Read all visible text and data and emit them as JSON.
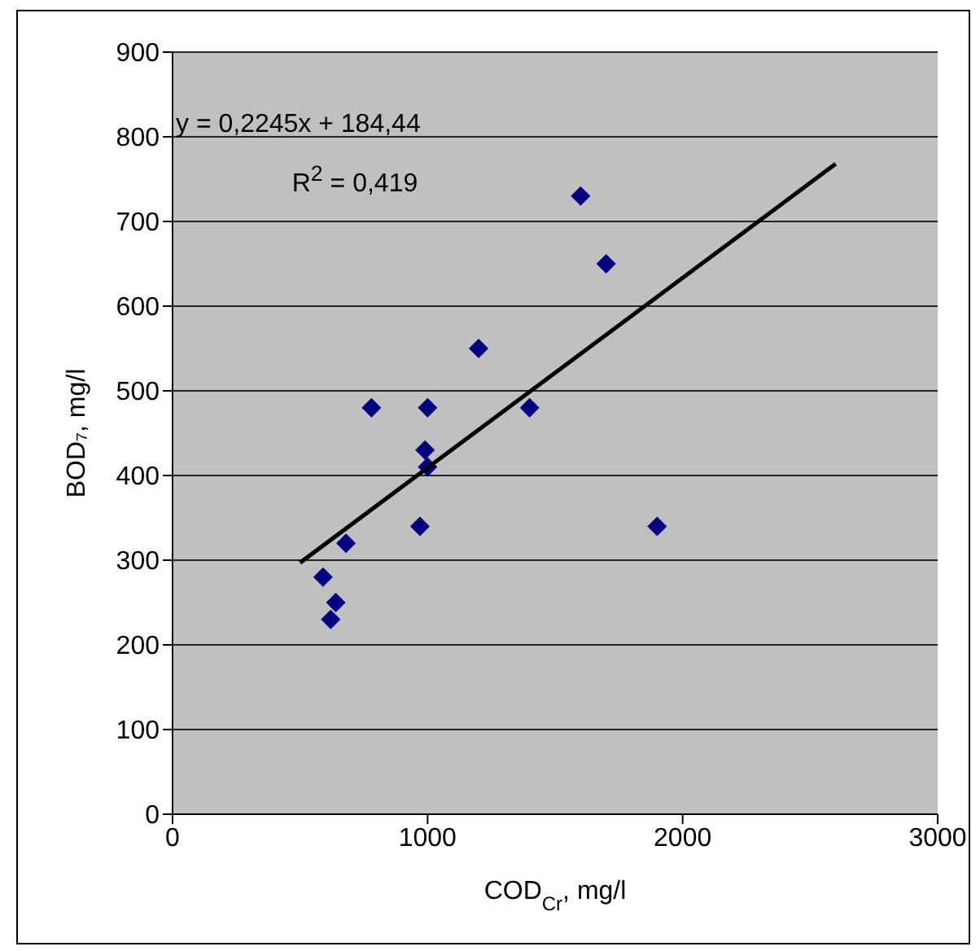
{
  "chart_data": {
    "type": "scatter",
    "xlabel": "COD$_{Cr}$, mg/l",
    "ylabel": "BOD₇, mg/l",
    "xlim": [
      0,
      3000
    ],
    "xticks": [
      0,
      1000,
      2000,
      3000
    ],
    "ylim": [
      0,
      900
    ],
    "yticks": [
      0,
      100,
      200,
      300,
      400,
      500,
      600,
      700,
      800,
      900
    ],
    "grid": "y",
    "marker": "diamond",
    "annotations": [
      "y = 0,2245x + 184,44",
      "R$^{2}$ = 0,419"
    ],
    "series": [
      {
        "type": "scatter",
        "color": "#000080",
        "x": [
          590,
          620,
          640,
          680,
          780,
          970,
          990,
          1000,
          1000,
          1200,
          1400,
          1600,
          1700,
          1900
        ],
        "values": [
          280,
          230,
          250,
          320,
          480,
          340,
          430,
          410,
          480,
          550,
          480,
          730,
          650,
          340
        ]
      },
      {
        "type": "line",
        "color": "#000000",
        "marker": "none",
        "x": [
          500,
          2600
        ],
        "values": [
          297,
          768
        ]
      }
    ]
  }
}
